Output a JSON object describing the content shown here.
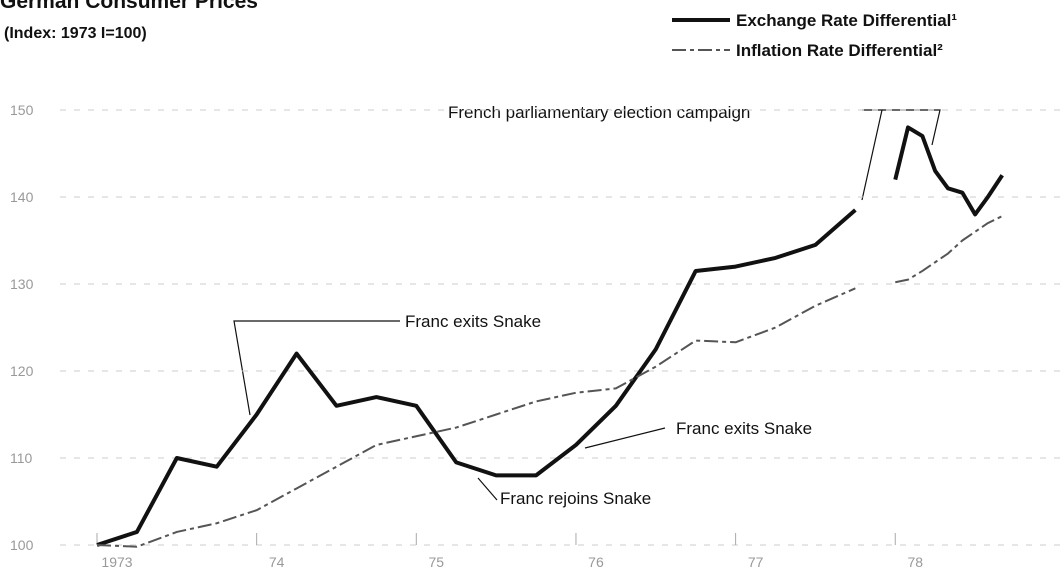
{
  "chart_data": {
    "type": "line",
    "title": "German Consumer Prices",
    "subtitle": "(Index: 1973 I=100)",
    "x": [
      1973.0,
      1973.25,
      1973.5,
      1973.75,
      1974.0,
      1974.25,
      1974.5,
      1974.75,
      1975.0,
      1975.25,
      1975.5,
      1975.75,
      1976.0,
      1976.25,
      1976.5,
      1976.75,
      1977.0,
      1977.25,
      1977.5,
      1977.75,
      1977.9,
      1978.0,
      1978.08,
      1978.17,
      1978.25,
      1978.33,
      1978.42,
      1978.5,
      1978.58,
      1978.67
    ],
    "series": [
      {
        "name": "Exchange Rate Differential¹",
        "color": "#111111",
        "style": "solid",
        "values": [
          100,
          101.5,
          110,
          109,
          115,
          122,
          116,
          117,
          116,
          109.5,
          108,
          108,
          111.5,
          116,
          122.5,
          131.5,
          132,
          133,
          134.5,
          138.5,
          null,
          142,
          148,
          147,
          143,
          141,
          140.5,
          138,
          140,
          142.5
        ]
      },
      {
        "name": "Inflation Rate Differential²",
        "color": "#555555",
        "style": "dashed",
        "values": [
          100,
          99.8,
          101.5,
          102.5,
          104,
          106.5,
          109,
          111.5,
          112.5,
          113.5,
          115,
          116.5,
          117.5,
          118,
          120.5,
          123.5,
          123.3,
          125,
          127.5,
          129.5,
          null,
          130.2,
          130.5,
          131.5,
          132.5,
          133.5,
          135,
          136,
          137,
          137.8
        ]
      }
    ],
    "xlim": [
      1973,
      1978.75
    ],
    "xticks": [
      {
        "value": 1973,
        "label": "1973"
      },
      {
        "value": 1974,
        "label": "74"
      },
      {
        "value": 1975,
        "label": "75"
      },
      {
        "value": 1976,
        "label": "76"
      },
      {
        "value": 1977,
        "label": "77"
      },
      {
        "value": 1978,
        "label": "78"
      }
    ],
    "ylim": [
      100,
      150
    ],
    "yticks": [
      100,
      110,
      120,
      130,
      140,
      150
    ],
    "grid": true,
    "annotations": [
      "French parliamentary election campaign",
      "Franc exits Snake",
      "Franc exits Snake",
      "Franc rejoins Snake"
    ]
  }
}
